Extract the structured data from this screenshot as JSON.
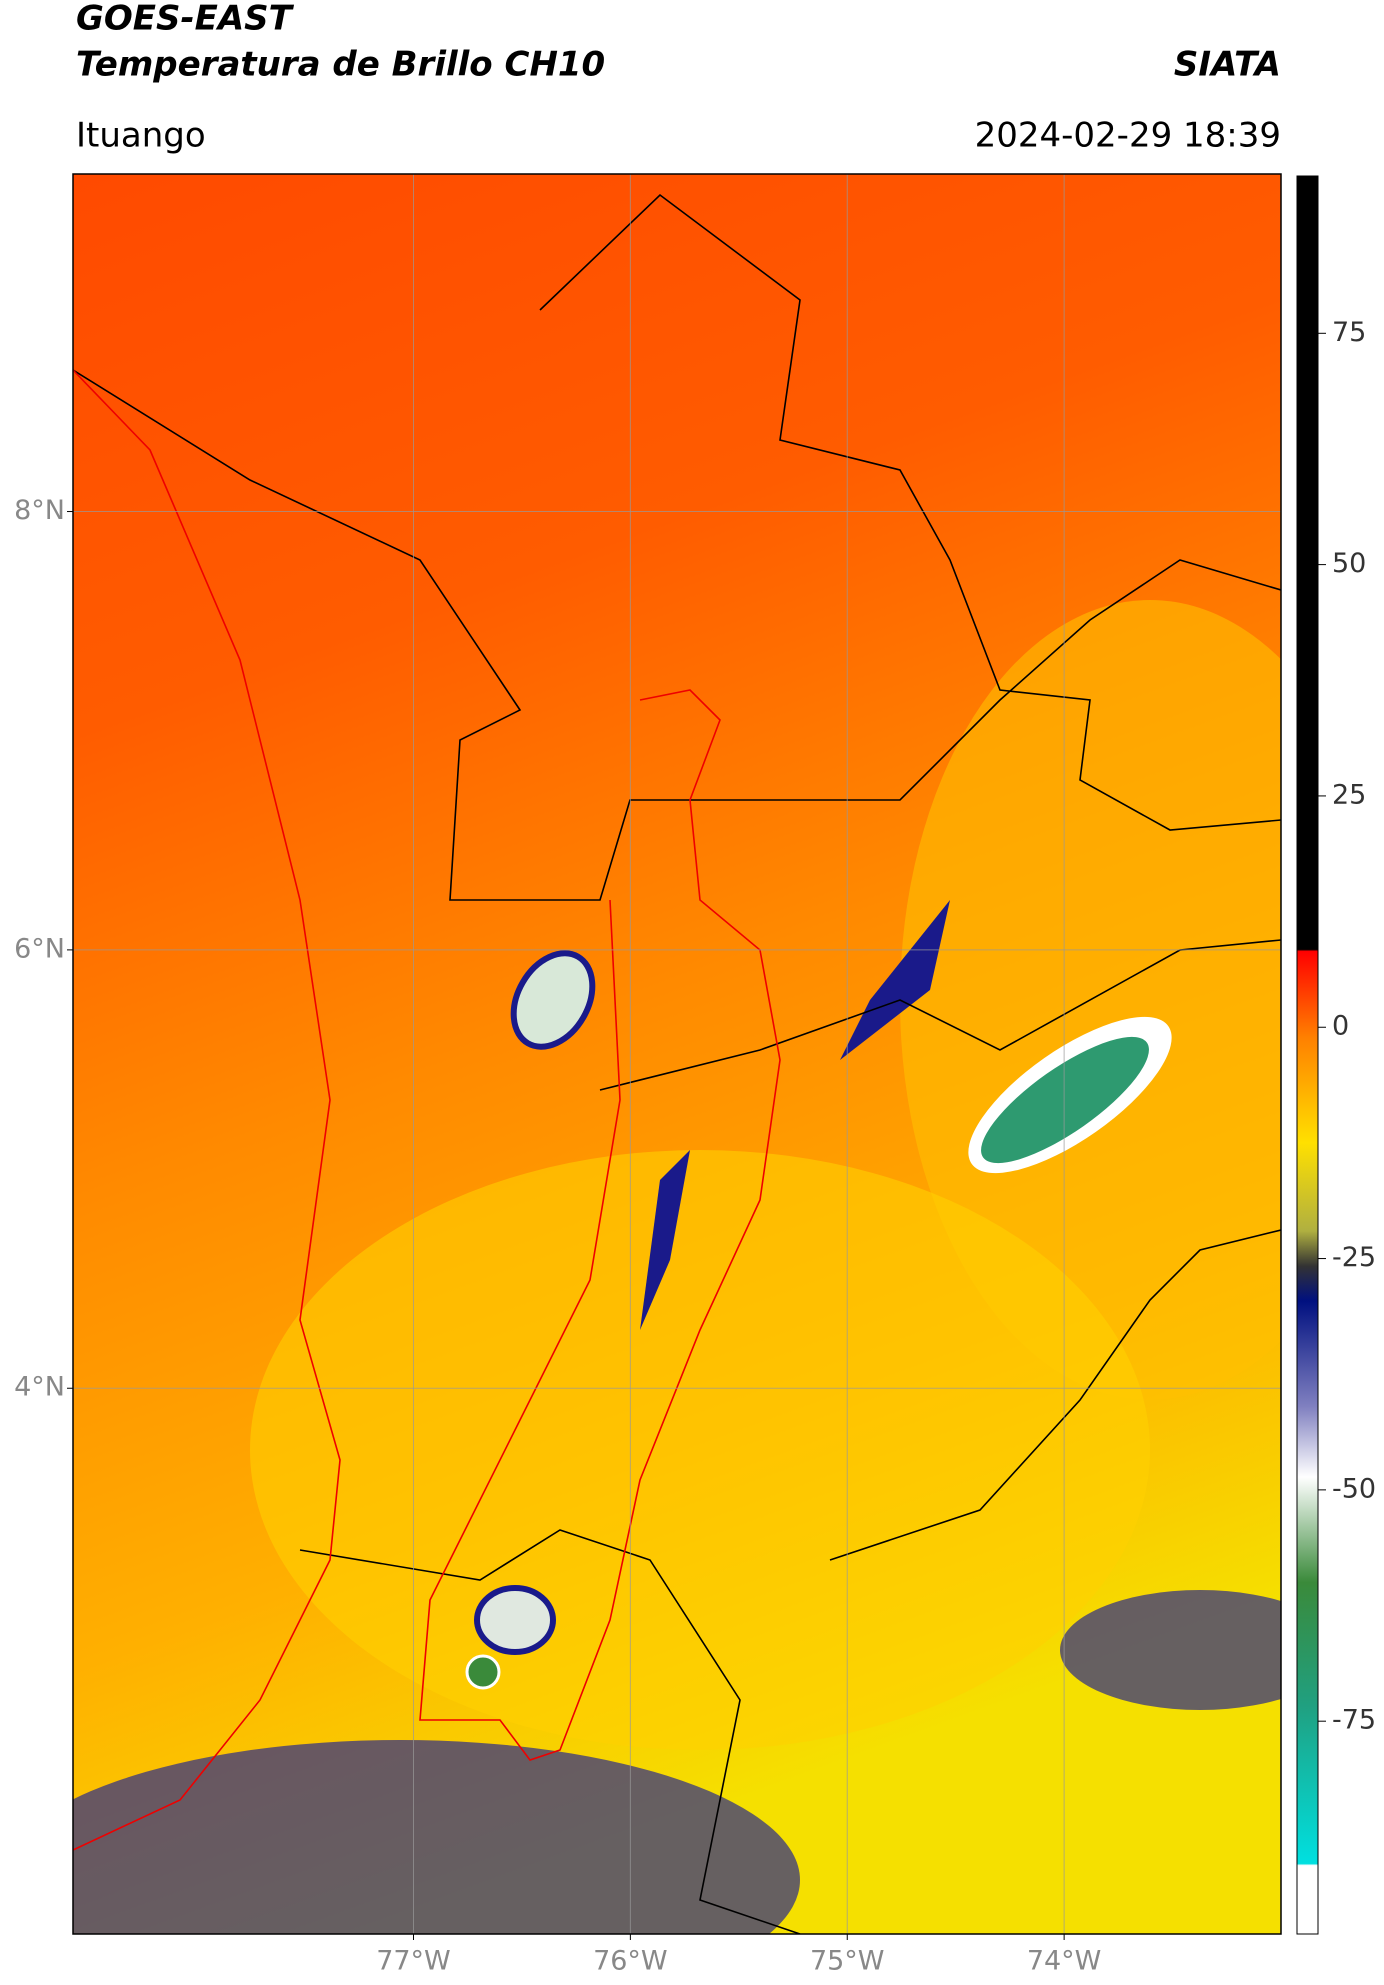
{
  "header": {
    "title": "GOES-EAST",
    "subtitle": "Temperatura de Brillo CH10",
    "source": "SIATA",
    "region": "Ituango",
    "datetime": "2024-02-29 18:39"
  },
  "map": {
    "lat_range": [
      1.51,
      9.54
    ],
    "lon_range": [
      -78.57,
      -73.0
    ],
    "lat_ticks": [
      {
        "value": 8,
        "label": "8°N"
      },
      {
        "value": 6,
        "label": "6°N"
      },
      {
        "value": 4,
        "label": "4°N"
      }
    ],
    "lon_ticks": [
      {
        "value": -77,
        "label": "77°W"
      },
      {
        "value": -76,
        "label": "76°W"
      },
      {
        "value": -75,
        "label": "75°W"
      },
      {
        "value": -74,
        "label": "74°W"
      }
    ]
  },
  "colorbar": {
    "range": [
      -98,
      92
    ],
    "ticks": [
      75,
      50,
      25,
      0,
      -25,
      -50,
      -75
    ]
  }
}
